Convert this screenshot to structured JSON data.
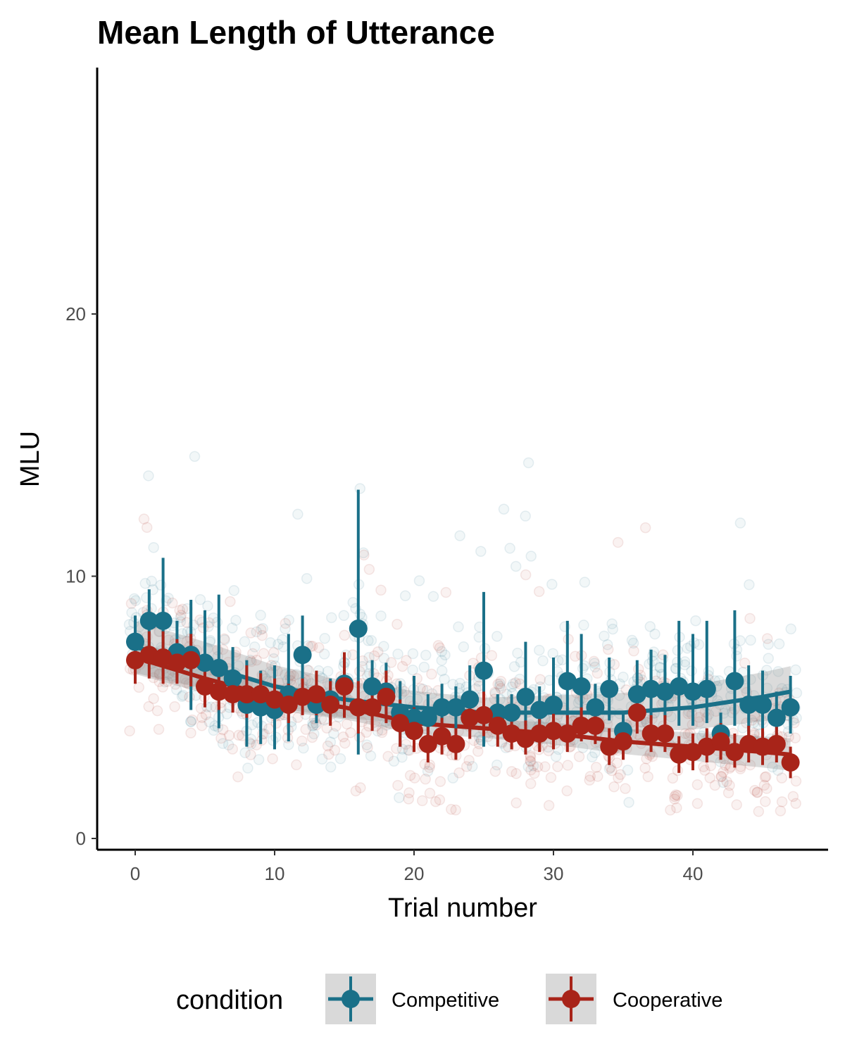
{
  "chart_data": {
    "type": "scatter",
    "title": "Mean Length of Utterance",
    "xlabel": "Trial number",
    "ylabel": "MLU",
    "xlim": [
      -2.8,
      49.2
    ],
    "ylim": [
      -0.4,
      29.6
    ],
    "x_ticks": [
      0,
      10,
      20,
      30,
      40
    ],
    "y_ticks": [
      0,
      10,
      20
    ],
    "grid": false,
    "legend": {
      "title": "condition",
      "position": "bottom"
    },
    "x": [
      0,
      1,
      2,
      3,
      4,
      5,
      6,
      7,
      8,
      9,
      10,
      11,
      12,
      13,
      14,
      15,
      16,
      17,
      18,
      19,
      20,
      21,
      22,
      23,
      24,
      25,
      26,
      27,
      28,
      29,
      30,
      31,
      32,
      33,
      34,
      35,
      36,
      37,
      38,
      39,
      40,
      41,
      42,
      43,
      44,
      45,
      46,
      47
    ],
    "series": [
      {
        "name": "Competitive",
        "color": "#1a7088",
        "means": [
          7.5,
          8.3,
          8.3,
          7.1,
          7.0,
          6.7,
          6.5,
          6.1,
          5.1,
          5.0,
          4.9,
          5.5,
          7.0,
          5.1,
          5.3,
          5.9,
          8.0,
          5.8,
          5.6,
          4.8,
          4.6,
          4.6,
          5.0,
          5.0,
          5.3,
          6.4,
          4.8,
          4.8,
          5.4,
          4.9,
          5.1,
          6.0,
          5.8,
          5.0,
          5.7,
          4.1,
          5.5,
          5.7,
          5.6,
          5.8,
          5.6,
          5.7,
          4.0,
          6.0,
          5.1,
          5.1,
          4.6,
          5.0
        ],
        "err_low": [
          6.6,
          7.2,
          6.2,
          6.0,
          4.9,
          5.2,
          4.2,
          5.0,
          3.5,
          3.6,
          3.4,
          3.7,
          5.4,
          4.4,
          4.5,
          5.2,
          3.2,
          4.8,
          4.5,
          3.5,
          3.6,
          3.8,
          4.1,
          4.2,
          4.1,
          3.5,
          4.1,
          4.1,
          4.3,
          4.1,
          4.3,
          4.6,
          4.5,
          4.1,
          4.5,
          3.5,
          4.5,
          4.5,
          4.5,
          4.3,
          4.3,
          4.4,
          3.4,
          4.3,
          3.7,
          4.0,
          3.9,
          4.0
        ],
        "err_high": [
          8.5,
          9.5,
          10.7,
          8.3,
          9.1,
          8.7,
          9.3,
          7.3,
          6.8,
          6.4,
          6.6,
          7.8,
          8.5,
          5.9,
          6.1,
          6.7,
          13.3,
          6.8,
          6.7,
          6.0,
          6.2,
          5.5,
          5.9,
          5.8,
          6.6,
          9.4,
          5.5,
          5.5,
          7.5,
          5.8,
          6.9,
          8.3,
          7.8,
          5.9,
          6.9,
          4.8,
          6.8,
          7.2,
          7.0,
          8.3,
          7.8,
          8.3,
          4.8,
          8.7,
          6.6,
          6.4,
          5.6,
          6.2
        ],
        "trend": [
          [
            0,
            7.3
          ],
          [
            5,
            6.6
          ],
          [
            10,
            5.8
          ],
          [
            15,
            5.3
          ],
          [
            20,
            5.0
          ],
          [
            25,
            4.8
          ],
          [
            30,
            4.8
          ],
          [
            35,
            4.8
          ],
          [
            40,
            5.0
          ],
          [
            45,
            5.4
          ],
          [
            47,
            5.6
          ]
        ]
      },
      {
        "name": "Cooperative",
        "color": "#a82419",
        "means": [
          6.8,
          7.0,
          6.9,
          6.7,
          6.8,
          5.8,
          5.6,
          5.5,
          5.5,
          5.5,
          5.3,
          5.1,
          5.4,
          5.5,
          5.1,
          5.8,
          5.0,
          5.0,
          5.4,
          4.4,
          4.1,
          3.6,
          3.9,
          3.6,
          4.6,
          4.7,
          4.3,
          4.0,
          3.8,
          4.0,
          4.1,
          4.0,
          4.3,
          4.3,
          3.5,
          3.7,
          4.8,
          4.0,
          4.0,
          3.2,
          3.3,
          3.5,
          3.7,
          3.3,
          3.6,
          3.5,
          3.6,
          2.9
        ],
        "err_low": [
          5.9,
          6.1,
          5.9,
          5.9,
          5.8,
          5.0,
          4.9,
          4.8,
          4.6,
          4.8,
          4.6,
          4.4,
          4.7,
          4.7,
          4.3,
          4.6,
          4.0,
          4.1,
          4.4,
          3.5,
          3.3,
          2.9,
          3.2,
          3.0,
          3.8,
          3.9,
          3.5,
          3.4,
          3.2,
          3.3,
          3.4,
          3.3,
          3.7,
          3.6,
          2.8,
          3.0,
          4.0,
          3.3,
          3.3,
          2.5,
          2.6,
          2.9,
          3.0,
          2.7,
          2.9,
          2.8,
          2.9,
          2.3
        ],
        "err_high": [
          7.8,
          7.9,
          7.9,
          7.6,
          7.8,
          6.7,
          6.4,
          6.3,
          6.6,
          6.3,
          6.1,
          5.9,
          6.1,
          6.4,
          6.0,
          7.1,
          6.0,
          6.0,
          6.4,
          5.3,
          5.0,
          4.3,
          4.6,
          4.2,
          5.5,
          5.6,
          5.1,
          4.7,
          4.5,
          4.7,
          4.8,
          4.7,
          5.0,
          5.0,
          4.2,
          4.4,
          5.6,
          4.7,
          4.7,
          3.9,
          4.0,
          4.2,
          4.4,
          4.0,
          4.3,
          4.2,
          4.3,
          3.5
        ],
        "trend": [
          [
            0,
            6.9
          ],
          [
            5,
            6.1
          ],
          [
            10,
            5.4
          ],
          [
            15,
            5.0
          ],
          [
            20,
            4.4
          ],
          [
            25,
            4.2
          ],
          [
            30,
            4.0
          ],
          [
            35,
            3.7
          ],
          [
            40,
            3.5
          ],
          [
            45,
            3.3
          ],
          [
            47,
            3.2
          ]
        ]
      }
    ],
    "raw_observations_note_free": true
  }
}
